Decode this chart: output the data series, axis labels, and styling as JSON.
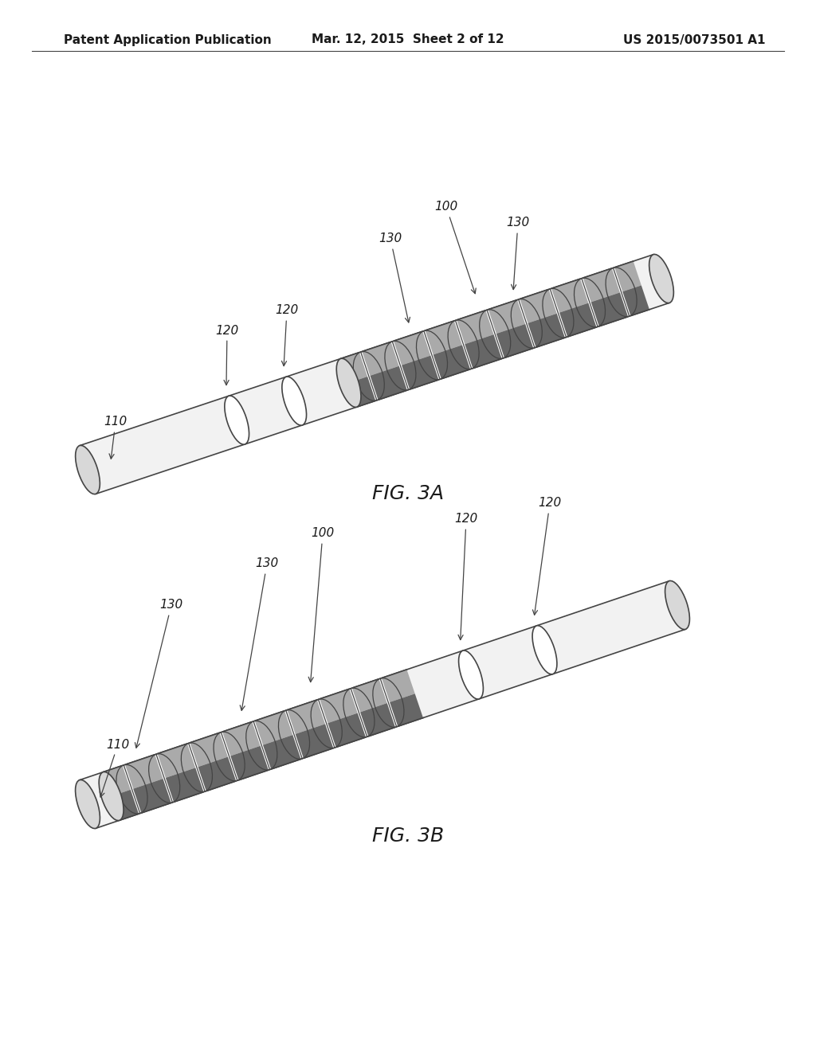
{
  "bg_color": "#ffffff",
  "header_left": "Patent Application Publication",
  "header_mid": "Mar. 12, 2015  Sheet 2 of 12",
  "header_right": "US 2015/0073501 A1",
  "header_fontsize": 11,
  "fig3a_label": "FIG. 3A",
  "fig3b_label": "FIG. 3B",
  "label_fontsize": 18,
  "annot_fontsize": 11,
  "text_color": "#1a1a1a",
  "line_color": "#444444",
  "body_color": "#f2f2f2",
  "cap_color": "#d8d8d8",
  "ring_color": "#ffffff",
  "elec_upper": "#aaaaaa",
  "elec_lower": "#888888",
  "elec_dark": "#666666"
}
